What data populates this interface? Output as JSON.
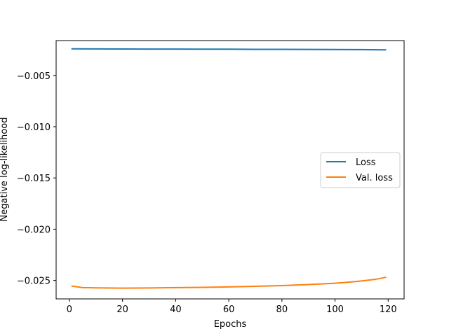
{
  "chart_data": {
    "type": "line",
    "title": "",
    "xlabel": "Epochs",
    "ylabel": "Negative log-likelihood",
    "xlim": [
      -5,
      126
    ],
    "ylim": [
      -0.0268,
      -0.0016
    ],
    "xticks": [
      0,
      20,
      40,
      60,
      80,
      100,
      120
    ],
    "yticks": [
      -0.005,
      -0.01,
      -0.015,
      -0.02,
      -0.025
    ],
    "ytick_labels": [
      "−0.005",
      "−0.010",
      "−0.015",
      "−0.020",
      "−0.025"
    ],
    "grid": false,
    "legend_position": "center-right",
    "series": [
      {
        "name": "Loss",
        "color": "#1f77b4",
        "x": [
          1,
          10,
          20,
          30,
          40,
          50,
          60,
          70,
          80,
          90,
          100,
          110,
          119
        ],
        "y": [
          -0.0024,
          -0.00241,
          -0.00242,
          -0.00243,
          -0.00243,
          -0.00244,
          -0.00244,
          -0.00245,
          -0.00245,
          -0.00246,
          -0.00247,
          -0.00248,
          -0.0025
        ]
      },
      {
        "name": "Val. loss",
        "color": "#ff7f0e",
        "x": [
          1,
          5,
          10,
          20,
          30,
          40,
          50,
          60,
          70,
          80,
          90,
          100,
          105,
          110,
          115,
          119
        ],
        "y": [
          -0.02555,
          -0.0257,
          -0.02572,
          -0.02575,
          -0.02573,
          -0.0257,
          -0.02567,
          -0.02563,
          -0.02557,
          -0.0255,
          -0.0254,
          -0.02527,
          -0.02517,
          -0.02505,
          -0.0249,
          -0.0247
        ]
      }
    ]
  }
}
